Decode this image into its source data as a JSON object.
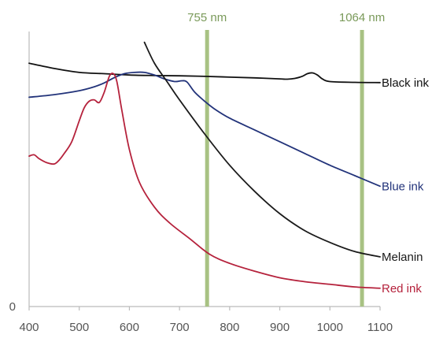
{
  "chart_data": {
    "type": "line",
    "title": "",
    "xlabel": "",
    "ylabel": "",
    "xlim": [
      400,
      1100
    ],
    "ylim": [
      0,
      1
    ],
    "xticks": [
      400,
      500,
      600,
      700,
      800,
      900,
      1000,
      1100
    ],
    "yticks": [
      0
    ],
    "grid": false,
    "legend": "none (series labelled at right end of each line)",
    "markers": [
      {
        "label": "755 nm",
        "x": 755
      },
      {
        "label": "1064 nm",
        "x": 1064
      }
    ],
    "series": [
      {
        "name": "Black ink",
        "color": "#111111",
        "points": [
          [
            400,
            0.93
          ],
          [
            450,
            0.91
          ],
          [
            500,
            0.895
          ],
          [
            550,
            0.89
          ],
          [
            600,
            0.885
          ],
          [
            650,
            0.883
          ],
          [
            700,
            0.882
          ],
          [
            750,
            0.88
          ],
          [
            800,
            0.877
          ],
          [
            850,
            0.874
          ],
          [
            900,
            0.87
          ],
          [
            915,
            0.869
          ],
          [
            930,
            0.872
          ],
          [
            945,
            0.88
          ],
          [
            955,
            0.89
          ],
          [
            965,
            0.893
          ],
          [
            975,
            0.885
          ],
          [
            985,
            0.87
          ],
          [
            1000,
            0.86
          ],
          [
            1050,
            0.857
          ],
          [
            1100,
            0.856
          ]
        ]
      },
      {
        "name": "Blue ink",
        "color": "#22337a",
        "points": [
          [
            400,
            0.8
          ],
          [
            450,
            0.81
          ],
          [
            500,
            0.825
          ],
          [
            530,
            0.84
          ],
          [
            550,
            0.855
          ],
          [
            570,
            0.875
          ],
          [
            590,
            0.89
          ],
          [
            610,
            0.895
          ],
          [
            630,
            0.895
          ],
          [
            650,
            0.885
          ],
          [
            670,
            0.87
          ],
          [
            690,
            0.86
          ],
          [
            705,
            0.863
          ],
          [
            715,
            0.858
          ],
          [
            730,
            0.82
          ],
          [
            750,
            0.785
          ],
          [
            770,
            0.755
          ],
          [
            800,
            0.72
          ],
          [
            850,
            0.675
          ],
          [
            900,
            0.63
          ],
          [
            950,
            0.585
          ],
          [
            1000,
            0.54
          ],
          [
            1050,
            0.5
          ],
          [
            1100,
            0.46
          ]
        ]
      },
      {
        "name": "Melanin",
        "color": "#1a1a1a",
        "points": [
          [
            630,
            1.01
          ],
          [
            650,
            0.93
          ],
          [
            675,
            0.86
          ],
          [
            700,
            0.79
          ],
          [
            750,
            0.66
          ],
          [
            800,
            0.54
          ],
          [
            850,
            0.44
          ],
          [
            900,
            0.355
          ],
          [
            950,
            0.29
          ],
          [
            1000,
            0.245
          ],
          [
            1050,
            0.21
          ],
          [
            1100,
            0.19
          ]
        ]
      },
      {
        "name": "Red ink",
        "color": "#b5223c",
        "points": [
          [
            400,
            0.575
          ],
          [
            410,
            0.58
          ],
          [
            420,
            0.565
          ],
          [
            435,
            0.55
          ],
          [
            450,
            0.545
          ],
          [
            460,
            0.56
          ],
          [
            470,
            0.585
          ],
          [
            485,
            0.63
          ],
          [
            500,
            0.71
          ],
          [
            510,
            0.76
          ],
          [
            520,
            0.785
          ],
          [
            530,
            0.79
          ],
          [
            540,
            0.78
          ],
          [
            550,
            0.82
          ],
          [
            560,
            0.88
          ],
          [
            568,
            0.89
          ],
          [
            575,
            0.86
          ],
          [
            585,
            0.75
          ],
          [
            600,
            0.6
          ],
          [
            620,
            0.475
          ],
          [
            650,
            0.38
          ],
          [
            680,
            0.32
          ],
          [
            720,
            0.26
          ],
          [
            760,
            0.2
          ],
          [
            800,
            0.165
          ],
          [
            850,
            0.135
          ],
          [
            900,
            0.11
          ],
          [
            950,
            0.095
          ],
          [
            1000,
            0.085
          ],
          [
            1050,
            0.075
          ],
          [
            1100,
            0.07
          ]
        ]
      }
    ]
  }
}
